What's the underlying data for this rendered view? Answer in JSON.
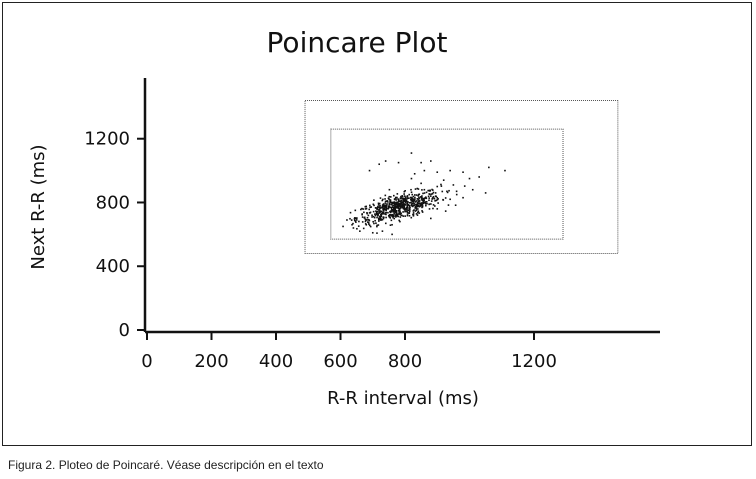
{
  "caption": "Figura 2. Ploteo de Poincaré. Véase descripción en el texto",
  "chart_data": {
    "type": "scatter",
    "title": "Poincare Plot",
    "xlabel": "R-R interval (ms)",
    "ylabel": "Next R-R (ms)",
    "xlim": [
      0,
      1600
    ],
    "ylim": [
      0,
      1600
    ],
    "x_ticks": [
      0,
      200,
      400,
      600,
      800,
      1200
    ],
    "y_ticks": [
      0,
      400,
      800,
      1200
    ],
    "grid": false,
    "legend": "none",
    "boxes": [
      {
        "x0": 490,
        "x1": 1460,
        "y0": 480,
        "y1": 1440
      },
      {
        "x0": 570,
        "x1": 1290,
        "y0": 570,
        "y1": 1260
      }
    ],
    "cluster": {
      "center_x": 780,
      "center_y": 770,
      "point_count": 650
    },
    "series": [
      {
        "points": [
          [
            1110,
            1000
          ],
          [
            1060,
            1020
          ],
          [
            1030,
            960
          ],
          [
            1000,
            950
          ],
          [
            980,
            990
          ],
          [
            950,
            910
          ],
          [
            940,
            1000
          ],
          [
            920,
            940
          ],
          [
            900,
            900
          ],
          [
            960,
            870
          ],
          [
            1010,
            880
          ],
          [
            930,
            870
          ],
          [
            900,
            990
          ],
          [
            880,
            1060
          ],
          [
            850,
            1050
          ],
          [
            820,
            1110
          ],
          [
            780,
            1050
          ],
          [
            740,
            1060
          ],
          [
            720,
            1040
          ],
          [
            690,
            1000
          ],
          [
            860,
            1000
          ],
          [
            830,
            980
          ],
          [
            1050,
            860
          ],
          [
            980,
            830
          ],
          [
            940,
            820
          ],
          [
            900,
            830
          ],
          [
            880,
            840
          ],
          [
            860,
            880
          ],
          [
            850,
            920
          ],
          [
            820,
            950
          ],
          [
            640,
            640
          ],
          [
            660,
            620
          ],
          [
            620,
            690
          ],
          [
            650,
            700
          ],
          [
            680,
            660
          ],
          [
            700,
            610
          ],
          [
            730,
            620
          ],
          [
            760,
            600
          ],
          [
            880,
            700
          ],
          [
            900,
            760
          ]
        ]
      }
    ]
  }
}
